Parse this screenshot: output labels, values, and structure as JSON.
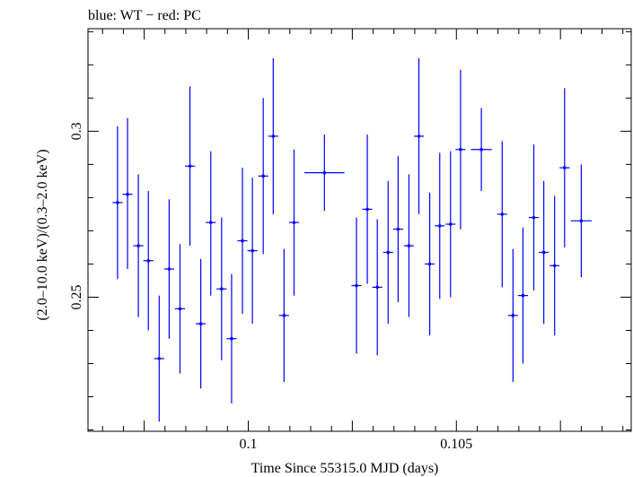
{
  "header": {
    "title": "blue: WT − red: PC"
  },
  "chart_data": {
    "type": "scatter",
    "title": "blue: WT − red: PC",
    "xlabel": "Time Since 55315.0 MJD (days)",
    "ylabel": "(2.0–10.0 keV)/(0.3–2.0 keV)",
    "xlim": [
      0.09615,
      0.1092
    ],
    "ylim": [
      0.2096,
      0.3309
    ],
    "x_ticks": [
      {
        "value": 0.1,
        "label": "0.1"
      },
      {
        "value": 0.105,
        "label": "0.105"
      }
    ],
    "y_ticks": [
      {
        "value": 0.25,
        "label": "0.25"
      },
      {
        "value": 0.3,
        "label": "0.3"
      }
    ],
    "grid": false,
    "series": [
      {
        "name": "WT",
        "color": "#0000ff",
        "points": [
          {
            "x": 0.09686,
            "y": 0.2785,
            "xerr": 0.00012,
            "ylo": 0.2555,
            "yhi": 0.3015
          },
          {
            "x": 0.0971,
            "y": 0.281,
            "xerr": 0.00012,
            "ylo": 0.2585,
            "yhi": 0.304
          },
          {
            "x": 0.09736,
            "y": 0.2655,
            "xerr": 0.00012,
            "ylo": 0.244,
            "yhi": 0.287
          },
          {
            "x": 0.0976,
            "y": 0.261,
            "xerr": 0.00012,
            "ylo": 0.24,
            "yhi": 0.282
          },
          {
            "x": 0.09786,
            "y": 0.2315,
            "xerr": 0.00012,
            "ylo": 0.2125,
            "yhi": 0.2505
          },
          {
            "x": 0.0981,
            "y": 0.2585,
            "xerr": 0.00012,
            "ylo": 0.2375,
            "yhi": 0.2795
          },
          {
            "x": 0.09836,
            "y": 0.2465,
            "xerr": 0.00012,
            "ylo": 0.227,
            "yhi": 0.266
          },
          {
            "x": 0.0986,
            "y": 0.2895,
            "xerr": 0.00012,
            "ylo": 0.2655,
            "yhi": 0.3135
          },
          {
            "x": 0.09886,
            "y": 0.242,
            "xerr": 0.00012,
            "ylo": 0.2225,
            "yhi": 0.2615
          },
          {
            "x": 0.0991,
            "y": 0.2725,
            "xerr": 0.00012,
            "ylo": 0.2505,
            "yhi": 0.294
          },
          {
            "x": 0.09936,
            "y": 0.2525,
            "xerr": 0.00012,
            "ylo": 0.231,
            "yhi": 0.274
          },
          {
            "x": 0.0996,
            "y": 0.2375,
            "xerr": 0.00012,
            "ylo": 0.218,
            "yhi": 0.257
          },
          {
            "x": 0.09986,
            "y": 0.267,
            "xerr": 0.00012,
            "ylo": 0.245,
            "yhi": 0.289
          },
          {
            "x": 0.1001,
            "y": 0.264,
            "xerr": 0.00012,
            "ylo": 0.242,
            "yhi": 0.286
          },
          {
            "x": 0.10036,
            "y": 0.2865,
            "xerr": 0.00012,
            "ylo": 0.263,
            "yhi": 0.31
          },
          {
            "x": 0.1006,
            "y": 0.2985,
            "xerr": 0.00012,
            "ylo": 0.275,
            "yhi": 0.322
          },
          {
            "x": 0.10086,
            "y": 0.2445,
            "xerr": 0.00012,
            "ylo": 0.2245,
            "yhi": 0.2645
          },
          {
            "x": 0.1011,
            "y": 0.2725,
            "xerr": 0.00012,
            "ylo": 0.2505,
            "yhi": 0.2945
          },
          {
            "x": 0.10183,
            "y": 0.2875,
            "xerr": 0.00048,
            "ylo": 0.276,
            "yhi": 0.299
          },
          {
            "x": 0.1026,
            "y": 0.2535,
            "xerr": 0.00012,
            "ylo": 0.233,
            "yhi": 0.274
          },
          {
            "x": 0.10286,
            "y": 0.2765,
            "xerr": 0.00012,
            "ylo": 0.254,
            "yhi": 0.299
          },
          {
            "x": 0.1031,
            "y": 0.253,
            "xerr": 0.00012,
            "ylo": 0.2325,
            "yhi": 0.2735
          },
          {
            "x": 0.10336,
            "y": 0.2635,
            "xerr": 0.00012,
            "ylo": 0.242,
            "yhi": 0.285
          },
          {
            "x": 0.1036,
            "y": 0.2705,
            "xerr": 0.00012,
            "ylo": 0.2485,
            "yhi": 0.2925
          },
          {
            "x": 0.10386,
            "y": 0.2655,
            "xerr": 0.00012,
            "ylo": 0.244,
            "yhi": 0.287
          },
          {
            "x": 0.1041,
            "y": 0.2985,
            "xerr": 0.00012,
            "ylo": 0.275,
            "yhi": 0.322
          },
          {
            "x": 0.10436,
            "y": 0.26,
            "xerr": 0.00012,
            "ylo": 0.2385,
            "yhi": 0.2815
          },
          {
            "x": 0.1046,
            "y": 0.2715,
            "xerr": 0.00012,
            "ylo": 0.2495,
            "yhi": 0.2935
          },
          {
            "x": 0.10486,
            "y": 0.272,
            "xerr": 0.00012,
            "ylo": 0.25,
            "yhi": 0.294
          },
          {
            "x": 0.1051,
            "y": 0.2945,
            "xerr": 0.00012,
            "ylo": 0.2705,
            "yhi": 0.3185
          },
          {
            "x": 0.1056,
            "y": 0.2945,
            "xerr": 0.00025,
            "ylo": 0.282,
            "yhi": 0.307
          },
          {
            "x": 0.1061,
            "y": 0.275,
            "xerr": 0.00012,
            "ylo": 0.253,
            "yhi": 0.297
          },
          {
            "x": 0.10636,
            "y": 0.2445,
            "xerr": 0.00012,
            "ylo": 0.2245,
            "yhi": 0.2645
          },
          {
            "x": 0.1066,
            "y": 0.2505,
            "xerr": 0.00012,
            "ylo": 0.23,
            "yhi": 0.271
          },
          {
            "x": 0.10686,
            "y": 0.274,
            "xerr": 0.00012,
            "ylo": 0.252,
            "yhi": 0.296
          },
          {
            "x": 0.1071,
            "y": 0.2635,
            "xerr": 0.00012,
            "ylo": 0.242,
            "yhi": 0.285
          },
          {
            "x": 0.10736,
            "y": 0.2595,
            "xerr": 0.00012,
            "ylo": 0.2385,
            "yhi": 0.2805
          },
          {
            "x": 0.1076,
            "y": 0.289,
            "xerr": 0.00012,
            "ylo": 0.265,
            "yhi": 0.313
          },
          {
            "x": 0.108,
            "y": 0.273,
            "xerr": 0.00025,
            "ylo": 0.256,
            "yhi": 0.29
          }
        ]
      }
    ]
  }
}
